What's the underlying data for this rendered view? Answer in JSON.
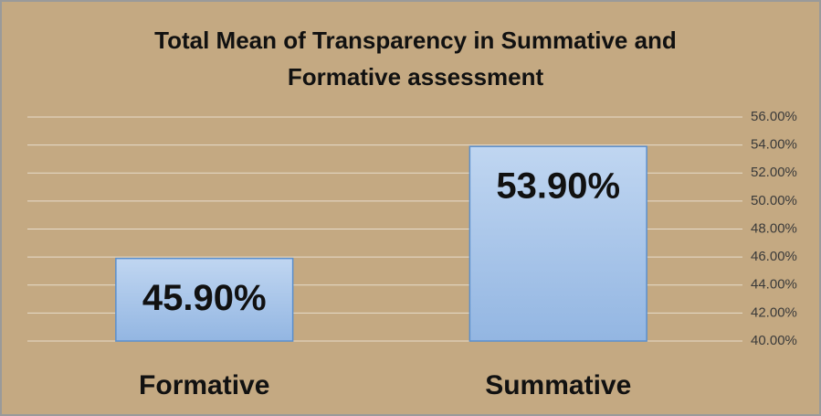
{
  "chart_data": {
    "type": "bar",
    "title": "Total Mean of Transparency in Summative and Formative assessment",
    "categories": [
      "Formative",
      "Summative"
    ],
    "values": [
      45.9,
      53.9
    ],
    "value_labels": [
      "45.90%",
      "53.90%"
    ],
    "color": "#a9c6ea",
    "ylim": [
      40,
      56
    ],
    "yticks": [
      {
        "value": 40,
        "label": "40.00%"
      },
      {
        "value": 42,
        "label": "42.00%"
      },
      {
        "value": 44,
        "label": "44.00%"
      },
      {
        "value": 46,
        "label": "46.00%"
      },
      {
        "value": 48,
        "label": "48.00%"
      },
      {
        "value": 50,
        "label": "50.00%"
      },
      {
        "value": 52,
        "label": "52.00%"
      },
      {
        "value": 54,
        "label": "54.00%"
      },
      {
        "value": 56,
        "label": "56.00%"
      }
    ],
    "grid": true
  }
}
